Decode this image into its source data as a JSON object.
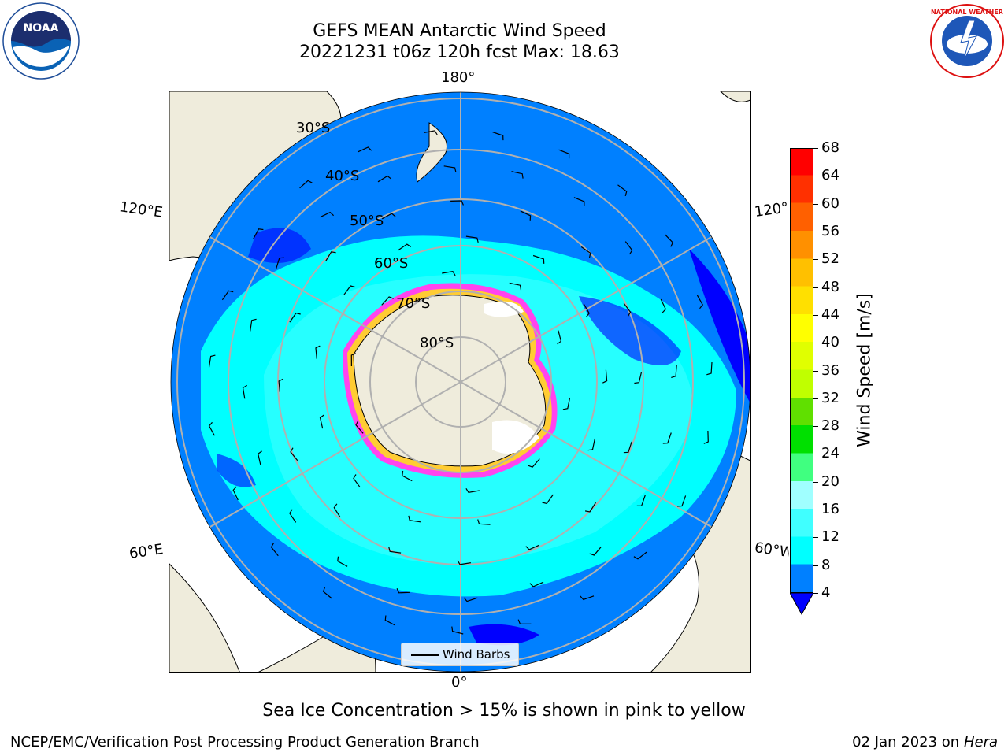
{
  "title_line1": "GEFS MEAN Antarctic Wind Speed",
  "title_line2": "20221231 t06z 120h fcst   Max: 18.63",
  "longitude_labels": {
    "top": "180°",
    "bottom": "0°",
    "upper_left": "120°E",
    "upper_right": "120°W",
    "lower_left": "60°E",
    "lower_right": "60°W"
  },
  "latitude_labels": [
    "30°S",
    "40°S",
    "50°S",
    "60°S",
    "70°S",
    "80°S"
  ],
  "legend_label": "Wind Barbs",
  "colorbar": {
    "title": "Wind Speed [m/s]",
    "ticks": [
      "68",
      "64",
      "60",
      "56",
      "52",
      "48",
      "44",
      "40",
      "36",
      "32",
      "28",
      "24",
      "20",
      "16",
      "12",
      "8",
      "4"
    ],
    "colors": [
      "#0000ff",
      "#0080ff",
      "#00ffff",
      "#40ffff",
      "#a0ffff",
      "#40ff80",
      "#00e000",
      "#60e000",
      "#c0ff00",
      "#e0ff00",
      "#ffff00",
      "#ffe000",
      "#ffc000",
      "#ff9000",
      "#ff6000",
      "#ff3000",
      "#ff0000"
    ]
  },
  "subtitle": "Sea Ice Concentration > 15% is shown in pink to yellow",
  "footer_left": "NCEP/EMC/Verification Post Processing Product Generation Branch",
  "footer_right_date": "02 Jan 2023 on ",
  "footer_right_host": "Hera",
  "map_colors": {
    "land": "#efecdc",
    "wind_4_8": "#0080ff",
    "wind_8_12": "#00ffff",
    "wind_12_16": "#40ffff",
    "wind_lt_4": "#0000ff",
    "sea_ice_pink": "#ff44ee",
    "sea_ice_yellow": "#ffcc33"
  }
}
